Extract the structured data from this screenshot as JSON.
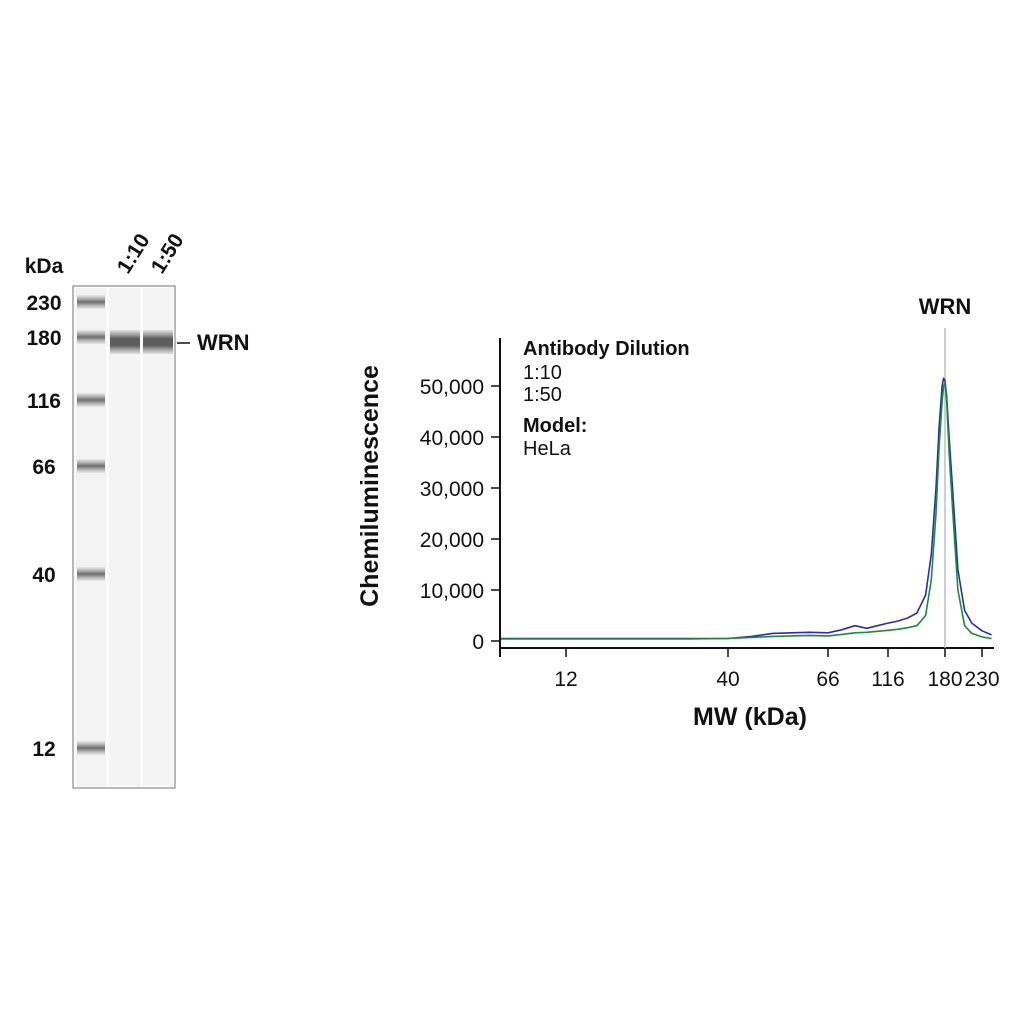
{
  "blot": {
    "unit_label": "kDa",
    "lanes": [
      "1:10",
      "1:50"
    ],
    "ladder_markers": [
      230,
      180,
      116,
      66,
      40,
      12
    ],
    "band_label": "WRN",
    "band_mw": 180
  },
  "chart_data": {
    "type": "line",
    "xlabel": "MW (kDa)",
    "ylabel": "Chemiluminescence",
    "x_scale": "log",
    "x_ticks": [
      12,
      40,
      66,
      116,
      180,
      230
    ],
    "y_ticks": [
      0,
      10000,
      20000,
      30000,
      40000,
      50000
    ],
    "y_tick_labels": [
      "0",
      "10,000",
      "20,000",
      "30,000",
      "40,000",
      "50,000"
    ],
    "ylim": [
      0,
      60000
    ],
    "grid": false,
    "peak_marker": {
      "label": "WRN",
      "x": 180
    },
    "legend": {
      "title": "Antibody Dilution",
      "model_label": "Model:",
      "model_value": "HeLa",
      "placement": "top-left"
    },
    "series": [
      {
        "name": "1:10",
        "color": "#2b2fa3",
        "x": [
          6.5,
          10,
          20,
          30,
          40,
          45,
          50,
          55,
          60,
          66,
          75,
          85,
          95,
          105,
          116,
          125,
          135,
          145,
          155,
          162,
          168,
          172,
          176,
          178,
          180,
          182,
          185,
          190,
          196,
          205,
          215,
          230,
          245
        ],
        "y": [
          500,
          500,
          500,
          500,
          500,
          900,
          1500,
          1600,
          1700,
          1600,
          2200,
          3000,
          2500,
          3000,
          3500,
          3900,
          4500,
          5500,
          9000,
          17000,
          30000,
          42000,
          50000,
          51500,
          51000,
          48000,
          40000,
          28000,
          14000,
          6000,
          3500,
          2000,
          1200
        ]
      },
      {
        "name": "1:50",
        "color": "#1e8a3c",
        "x": [
          6.5,
          10,
          20,
          30,
          40,
          45,
          50,
          55,
          60,
          66,
          75,
          85,
          95,
          105,
          116,
          125,
          135,
          145,
          155,
          162,
          168,
          172,
          176,
          178,
          180,
          182,
          185,
          190,
          196,
          205,
          215,
          230,
          245
        ],
        "y": [
          400,
          400,
          400,
          400,
          500,
          700,
          900,
          1000,
          1100,
          1000,
          1300,
          1600,
          1700,
          1900,
          2100,
          2300,
          2600,
          3000,
          5000,
          12000,
          25000,
          38000,
          47000,
          50000,
          50500,
          47000,
          37000,
          24000,
          10000,
          3000,
          1500,
          800,
          500
        ]
      }
    ]
  }
}
